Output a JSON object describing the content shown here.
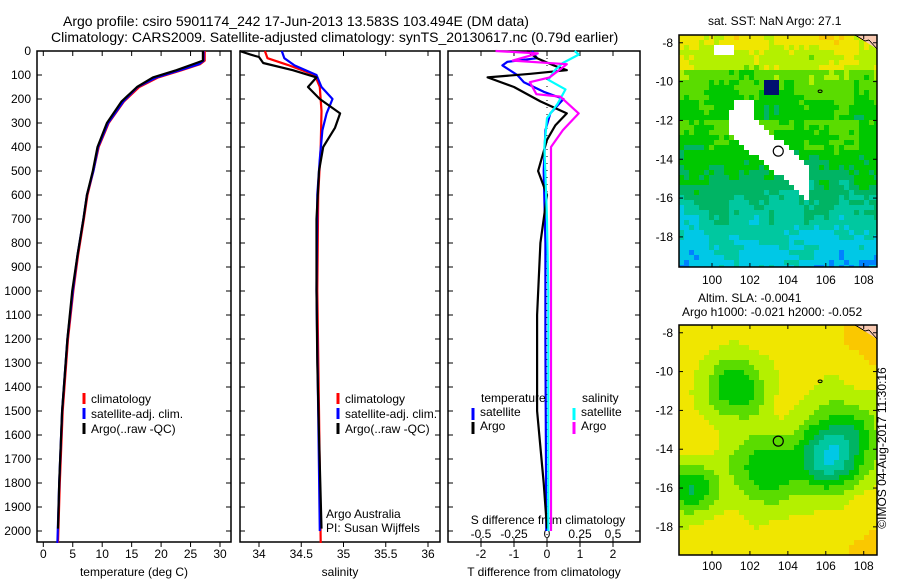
{
  "header": {
    "title_line1": "Argo profile: csiro 5901174_242 17-Jun-2013 13.583S 103.494E (DM data)",
    "title_line2": "Climatology: CARS2009. Satellite-adjusted climatology: synTS_20130617.nc (0.79d earlier)"
  },
  "credits": {
    "line1": "Argo Australia",
    "line2": "PI: Susan Wijffels",
    "imos": "©IMOS 04-Aug-2017 11:30:16"
  },
  "colors": {
    "climatology": "#ff0000",
    "satellite": "#0000ff",
    "argo": "#000000",
    "sal_satellite": "#00ffff",
    "sal_argo": "#ff00ff"
  },
  "chart_data": [
    {
      "type": "line",
      "title": "",
      "xlabel": "temperature (deg C)",
      "ylabel": "",
      "xlim": [
        -1,
        32
      ],
      "ylim": [
        2050,
        0
      ],
      "xticks": [
        "0",
        "5",
        "10",
        "15",
        "20",
        "25",
        "30"
      ],
      "xtick_values": [
        0,
        5,
        10,
        15,
        20,
        25,
        30
      ],
      "yticks": [
        "0",
        "100",
        "200",
        "300",
        "400",
        "500",
        "600",
        "700",
        "800",
        "900",
        "1000",
        "1100",
        "1200",
        "1300",
        "1400",
        "1500",
        "1600",
        "1700",
        "1800",
        "1900",
        "2000"
      ],
      "legend": [
        "climatology",
        "satellite-adj. clim.",
        "Argo(..raw -QC)"
      ],
      "series": [
        {
          "name": "climatology",
          "points": [
            [
              0,
              27.4
            ],
            [
              40,
              27.4
            ],
            [
              55,
              26.6
            ],
            [
              80,
              23.5
            ],
            [
              110,
              19.5
            ],
            [
              150,
              16.3
            ],
            [
              210,
              13.7
            ],
            [
              300,
              11.1
            ],
            [
              400,
              9.4
            ],
            [
              500,
              8.5
            ],
            [
              600,
              7.5
            ],
            [
              700,
              6.9
            ],
            [
              850,
              5.9
            ],
            [
              1000,
              5.1
            ],
            [
              1200,
              4.2
            ],
            [
              1500,
              3.3
            ],
            [
              1800,
              2.8
            ],
            [
              2050,
              2.5
            ]
          ]
        },
        {
          "name": "satellite-adj. clim.",
          "points": [
            [
              0,
              27.2
            ],
            [
              40,
              27.2
            ],
            [
              55,
              26.4
            ],
            [
              80,
              23.2
            ],
            [
              110,
              19.2
            ],
            [
              150,
              16.0
            ],
            [
              210,
              13.6
            ],
            [
              300,
              11.0
            ],
            [
              400,
              9.3
            ],
            [
              500,
              8.5
            ],
            [
              600,
              7.4
            ],
            [
              700,
              6.8
            ],
            [
              850,
              5.8
            ],
            [
              1000,
              5.0
            ],
            [
              1200,
              4.1
            ],
            [
              1500,
              3.2
            ],
            [
              1800,
              2.7
            ],
            [
              2050,
              2.4
            ]
          ]
        },
        {
          "name": "Argo(..raw -QC)",
          "points": [
            [
              0,
              27.1
            ],
            [
              40,
              27.1
            ],
            [
              50,
              26.0
            ],
            [
              80,
              22.6
            ],
            [
              110,
              18.6
            ],
            [
              150,
              15.9
            ],
            [
              210,
              13.3
            ],
            [
              300,
              10.8
            ],
            [
              400,
              9.2
            ],
            [
              500,
              8.4
            ],
            [
              600,
              7.4
            ],
            [
              700,
              6.8
            ],
            [
              850,
              5.8
            ],
            [
              1000,
              4.9
            ],
            [
              1200,
              4.1
            ],
            [
              1500,
              3.2
            ],
            [
              1800,
              2.7
            ],
            [
              1990,
              2.5
            ]
          ]
        }
      ]
    },
    {
      "type": "line",
      "xlabel": "salinity",
      "xlim": [
        33.76,
        36.14
      ],
      "ylim": [
        2050,
        0
      ],
      "xticks": [
        "34",
        "34.5",
        "35",
        "35.5",
        "36"
      ],
      "xtick_values": [
        34,
        34.5,
        35,
        35.5,
        36
      ],
      "legend": [
        "climatology",
        "satellite-adj. clim.",
        "Argo(..raw -QC)"
      ],
      "series": [
        {
          "name": "climatology",
          "points": [
            [
              0,
              34.07
            ],
            [
              30,
              34.1
            ],
            [
              58,
              34.34
            ],
            [
              100,
              34.66
            ],
            [
              150,
              34.72
            ],
            [
              250,
              34.74
            ],
            [
              400,
              34.73
            ],
            [
              600,
              34.7
            ],
            [
              1000,
              34.69
            ],
            [
              1500,
              34.71
            ],
            [
              2050,
              34.73
            ]
          ]
        },
        {
          "name": "satellite-adj. clim.",
          "points": [
            [
              0,
              34.27
            ],
            [
              30,
              34.3
            ],
            [
              60,
              34.42
            ],
            [
              100,
              34.68
            ],
            [
              150,
              34.74
            ],
            [
              200,
              34.87
            ],
            [
              260,
              34.8
            ],
            [
              330,
              34.75
            ],
            [
              450,
              34.72
            ],
            [
              600,
              34.69
            ],
            [
              1000,
              34.68
            ],
            [
              1500,
              34.7
            ],
            [
              2000,
              34.72
            ]
          ]
        },
        {
          "name": "Argo(..raw -QC)",
          "points": [
            [
              0,
              33.77
            ],
            [
              15,
              33.9
            ],
            [
              25,
              34.0
            ],
            [
              50,
              34.05
            ],
            [
              80,
              34.4
            ],
            [
              110,
              34.68
            ],
            [
              150,
              34.58
            ],
            [
              200,
              34.72
            ],
            [
              260,
              34.96
            ],
            [
              320,
              34.9
            ],
            [
              400,
              34.76
            ],
            [
              500,
              34.71
            ],
            [
              700,
              34.68
            ],
            [
              1000,
              34.68
            ],
            [
              1300,
              34.69
            ],
            [
              1600,
              34.71
            ],
            [
              1990,
              34.74
            ]
          ]
        }
      ]
    },
    {
      "type": "line",
      "xlabel": "T difference from climatology",
      "xlabel2": "S difference from climatology",
      "xlim": [
        -3,
        2.8
      ],
      "ylim": [
        2050,
        0
      ],
      "xticks": [
        "-2",
        "-1",
        "0",
        "1",
        "2"
      ],
      "xtick_values": [
        -2,
        -1,
        0,
        1,
        2
      ],
      "sticks": [
        "-0.5",
        "-0.25",
        "0",
        "0.25",
        "0.5"
      ],
      "stick_values": [
        -0.5,
        -0.25,
        0,
        0.25,
        0.5
      ],
      "legend_headers": [
        "temperature",
        "salinity"
      ],
      "legend": [
        "satellite",
        "Argo",
        "satellite",
        "Argo"
      ],
      "series": [
        {
          "name": "T satellite",
          "var": "T",
          "points": [
            [
              0,
              -0.45
            ],
            [
              30,
              -0.3
            ],
            [
              45,
              -1.2
            ],
            [
              60,
              -1.35
            ],
            [
              100,
              -0.9
            ],
            [
              130,
              -0.7
            ],
            [
              170,
              -0.1
            ],
            [
              200,
              0.5
            ],
            [
              260,
              0.1
            ],
            [
              330,
              -0.05
            ],
            [
              500,
              -0.1
            ],
            [
              800,
              -0.05
            ],
            [
              1200,
              -0.05
            ],
            [
              2000,
              -0.02
            ]
          ]
        },
        {
          "name": "T Argo",
          "var": "T",
          "points": [
            [
              0,
              -0.6
            ],
            [
              30,
              -0.3
            ],
            [
              60,
              0.2
            ],
            [
              80,
              0.6
            ],
            [
              95,
              -0.5
            ],
            [
              110,
              -1.8
            ],
            [
              150,
              -1.0
            ],
            [
              210,
              -0.2
            ],
            [
              260,
              0.6
            ],
            [
              310,
              0.25
            ],
            [
              370,
              0
            ],
            [
              500,
              -0.27
            ],
            [
              600,
              0
            ],
            [
              800,
              -0.2
            ],
            [
              1100,
              -0.3
            ],
            [
              1500,
              -0.3
            ],
            [
              1800,
              -0.1
            ],
            [
              1990,
              0
            ]
          ]
        },
        {
          "name": "S satellite",
          "var": "S",
          "points": [
            [
              0,
              0.21
            ],
            [
              15,
              0.24
            ],
            [
              50,
              0.12
            ],
            [
              80,
              0.06
            ],
            [
              120,
              0.01
            ],
            [
              160,
              0.14
            ],
            [
              220,
              0.08
            ],
            [
              280,
              0
            ],
            [
              400,
              -0.02
            ],
            [
              700,
              0
            ],
            [
              1000,
              0.01
            ],
            [
              2000,
              0.01
            ]
          ]
        },
        {
          "name": "S Argo",
          "var": "S",
          "points": [
            [
              0,
              -0.39
            ],
            [
              10,
              -0.07
            ],
            [
              40,
              -0.26
            ],
            [
              55,
              0.15
            ],
            [
              110,
              0.02
            ],
            [
              130,
              -0.13
            ],
            [
              180,
              -0.08
            ],
            [
              190,
              0.1
            ],
            [
              260,
              0.24
            ],
            [
              330,
              0.12
            ],
            [
              400,
              0.03
            ],
            [
              600,
              0.03
            ],
            [
              1000,
              0.03
            ],
            [
              1500,
              0.03
            ],
            [
              2000,
              0.03
            ]
          ]
        }
      ]
    }
  ],
  "maps": {
    "sst": {
      "label": "sat. SST: NaN Argo: 27.1",
      "lon_ticks": [
        "100",
        "102",
        "104",
        "106",
        "108"
      ],
      "lat_ticks": [
        "-8",
        "-10",
        "-12",
        "-14",
        "-16",
        "-18"
      ],
      "lon_range": [
        98.26,
        108.7
      ],
      "lat_range": [
        -7.6,
        -19.55
      ]
    },
    "sla": {
      "label1": "Altim. SLA: -0.0041",
      "label2": "Argo h1000: -0.021 h2000: -0.052",
      "lon_ticks": [
        "100",
        "102",
        "104",
        "106",
        "108"
      ],
      "lat_ticks": [
        "-8",
        "-10",
        "-12",
        "-14",
        "-16",
        "-18"
      ],
      "lon_range": [
        98.26,
        108.7
      ],
      "lat_range": [
        -7.6,
        -19.45
      ]
    },
    "profile_location": {
      "lon": 103.494,
      "lat": -13.583
    }
  }
}
